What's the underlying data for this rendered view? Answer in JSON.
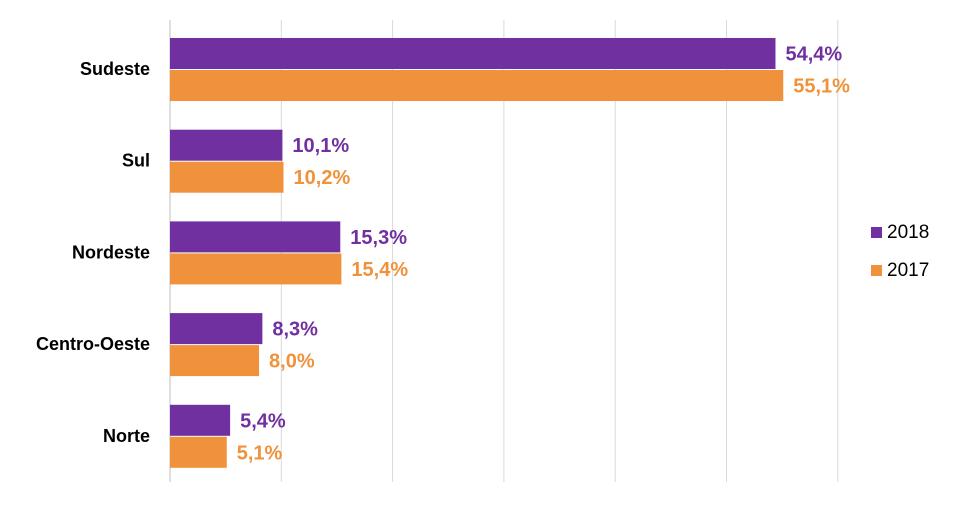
{
  "chart_data": {
    "type": "bar",
    "orientation": "horizontal",
    "title": "",
    "xlabel": "",
    "ylabel": "",
    "xlim": [
      0,
      60
    ],
    "grid": true,
    "legend_position": "right",
    "categories": [
      "Sudeste",
      "Sul",
      "Nordeste",
      "Centro-Oeste",
      "Norte"
    ],
    "series": [
      {
        "name": "2018",
        "color": "#7030A0",
        "values": [
          54.4,
          10.1,
          15.3,
          8.3,
          5.4
        ],
        "labels": [
          "54,4%",
          "10,1%",
          "15,3%",
          "8,3%",
          "5,4%"
        ]
      },
      {
        "name": "2017",
        "color": "#F0923B",
        "values": [
          55.1,
          10.2,
          15.4,
          8.0,
          5.1
        ],
        "labels": [
          "55,1%",
          "10,2%",
          "15,4%",
          "8,0%",
          "5,1%"
        ]
      }
    ]
  }
}
